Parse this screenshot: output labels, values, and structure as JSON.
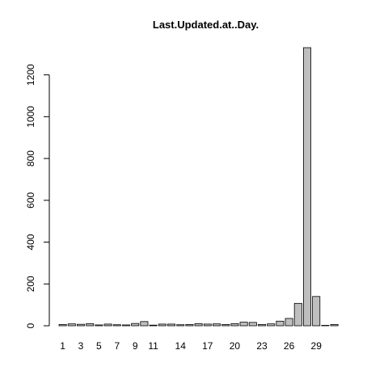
{
  "chart_data": {
    "type": "bar",
    "title": "Last.Updated.at..Day.",
    "xlabel": "",
    "ylabel": "",
    "ylim": [
      0,
      1330
    ],
    "y_ticks": [
      0,
      200,
      400,
      600,
      800,
      1000,
      1200
    ],
    "y_tick_labels": [
      "0",
      "200",
      "400",
      "600",
      "800",
      "1000",
      "1200"
    ],
    "categories": [
      "1",
      "2",
      "3",
      "4",
      "5",
      "6",
      "7",
      "8",
      "9",
      "10",
      "11",
      "12",
      "13",
      "14",
      "15",
      "16",
      "17",
      "18",
      "19",
      "20",
      "21",
      "22",
      "23",
      "24",
      "25",
      "26",
      "27",
      "28",
      "29",
      "30",
      "31"
    ],
    "shown_x_labels": [
      "1",
      "3",
      "5",
      "7",
      "9",
      "11",
      "14",
      "17",
      "20",
      "23",
      "26",
      "29"
    ],
    "values": [
      6,
      9,
      7,
      10,
      4,
      8,
      5,
      4,
      11,
      20,
      3,
      8,
      8,
      5,
      6,
      10,
      8,
      9,
      6,
      10,
      17,
      16,
      6,
      9,
      22,
      35,
      107,
      1330,
      140,
      2,
      6
    ],
    "bar_fill": "#bebebe",
    "bar_stroke": "#000000",
    "grid": false,
    "legend": "none"
  }
}
